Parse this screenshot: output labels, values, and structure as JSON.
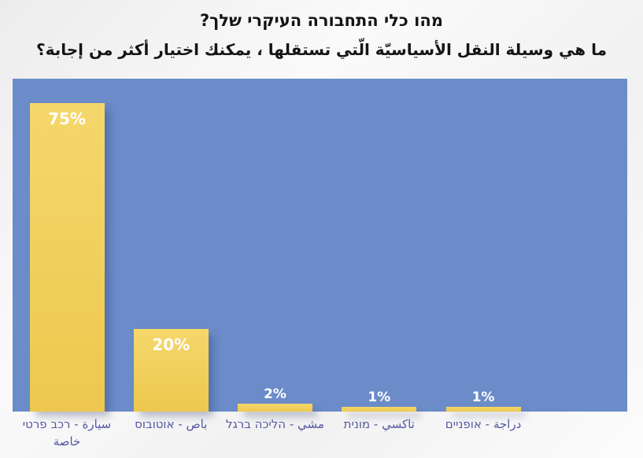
{
  "title": {
    "line1_he": "מהו כלי התחבורה העיקרי שלך?",
    "line2_ar": "ما هي وسيلة النقل الأسياسيّة الّتي تستقلها ، يمكنك اختيار أكثر من إجابة؟"
  },
  "chart_data": {
    "type": "bar",
    "title": "מהו כלי התחבורה העיקרי שלך?",
    "subtitle": "ما هي وسيلة النقل الأسياسيّة الّتي تستقلها ، يمكنك اختيار أكثر من إجابة؟",
    "categories": [
      "רכב פרטי - سيارة خاصة",
      "אוטובוס - باص",
      "הליכה ברגל - مشي",
      "מונית - تاكسي",
      "אופניים - دراجة"
    ],
    "categories_parts": [
      {
        "he": "רכב פרטי",
        "ar": "سيارة خاصة"
      },
      {
        "he": "אוטובוס",
        "ar": "باص"
      },
      {
        "he": "הליכה ברגל",
        "ar": "مشي"
      },
      {
        "he": "מונית",
        "ar": "تاكسي"
      },
      {
        "he": "אופניים",
        "ar": "دراجة"
      }
    ],
    "separator": "-",
    "values": [
      75,
      20,
      2,
      1,
      1
    ],
    "value_labels": [
      "75%",
      "20%",
      "2%",
      "1%",
      "1%"
    ],
    "ylim": [
      0,
      80
    ],
    "grid": false,
    "legend": "none",
    "colors": {
      "plot_background": "#6b8cc9",
      "bar_top": "#f4d76b",
      "bar_bottom": "#eec84e",
      "value_label": "#ffffff",
      "category_label": "#5456a4",
      "title": "#141414"
    }
  }
}
